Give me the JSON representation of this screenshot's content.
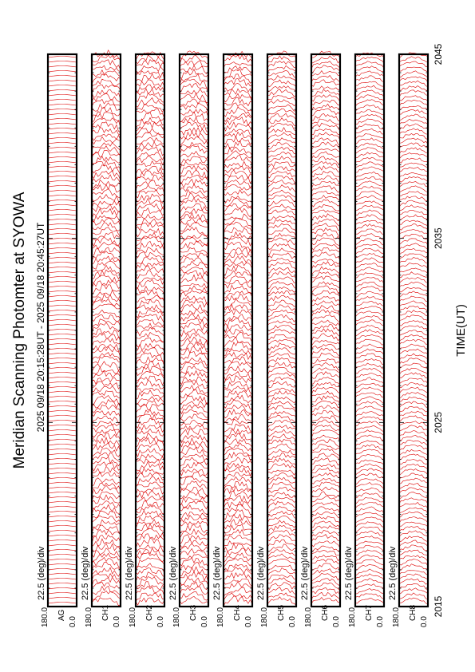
{
  "chart_data": {
    "type": "line",
    "title": "Meridian Scanning Photomter at SYOWA",
    "time_range_label": "2025 09/18 20:15:28UT - 2025 09/18 20:45:27UT",
    "xlabel": "TIME(UT)",
    "x_ticks": [
      "2015",
      "2025",
      "2035",
      "2045"
    ],
    "xlim": [
      2015,
      2045
    ],
    "y_tick_top": "180.0",
    "y_tick_bottom": "0.0",
    "ylim": [
      0,
      180
    ],
    "scale_label": "22.5 (deg)/div",
    "line_color": "#dd0000",
    "channels": [
      {
        "name": "AG",
        "mode": "regular",
        "seed": 1
      },
      {
        "name": "CH1",
        "mode": "noisy",
        "seed": 2
      },
      {
        "name": "CH2",
        "mode": "noisy",
        "seed": 3
      },
      {
        "name": "CH3",
        "mode": "noisy",
        "seed": 4
      },
      {
        "name": "CH4",
        "mode": "noisy",
        "seed": 5
      },
      {
        "name": "CH5",
        "mode": "semi",
        "seed": 6
      },
      {
        "name": "CH6",
        "mode": "semi",
        "seed": 7
      },
      {
        "name": "CH7",
        "mode": "smooth",
        "seed": 8
      },
      {
        "name": "CH8",
        "mode": "smooth",
        "seed": 9
      }
    ]
  }
}
